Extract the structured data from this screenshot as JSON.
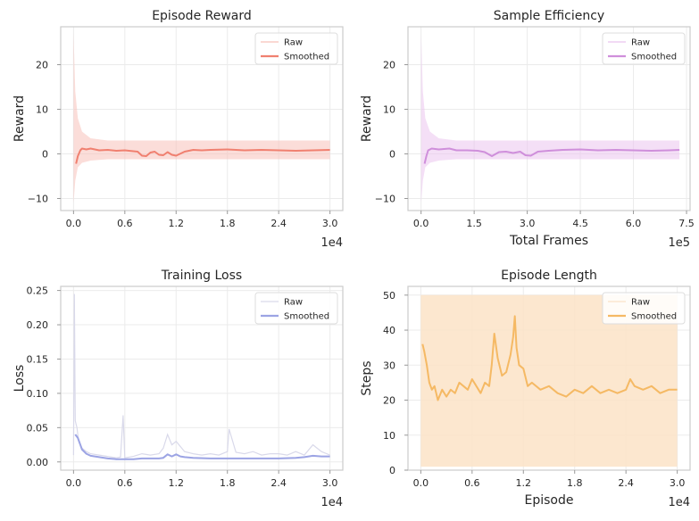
{
  "colors": {
    "background": "#ffffff",
    "spine": "#cccccc",
    "grid": "#ebebeb",
    "raw_reward": "#f7c1b9",
    "smoothed_reward": "#f08070",
    "raw_frames": "#ebc4ef",
    "smoothed_frames": "#cf8fdb",
    "raw_loss": "#d9d9ea",
    "smoothed_loss": "#9ca4e4",
    "band_length": "#fbe3c7",
    "smoothed_length": "#f5b964"
  },
  "chart_data": [
    {
      "id": "episode-reward",
      "type": "line",
      "title": "Episode Reward",
      "xlabel": "",
      "ylabel": "Reward",
      "x_multiplier": "1e4",
      "xlim": [
        -0.15,
        3.15
      ],
      "ylim": [
        -12.7,
        28.5
      ],
      "x_ticks": [
        0,
        0.6,
        1.2,
        1.8,
        2.4,
        3.0
      ],
      "x_tick_labels": [
        "0.0",
        "0.6",
        "1.2",
        "1.8",
        "2.4",
        "3.0"
      ],
      "y_ticks": [
        -10,
        0,
        10,
        20
      ],
      "y_tick_labels": [
        "−10",
        "0",
        "10",
        "20"
      ],
      "legend": {
        "position": "top-right",
        "entries": [
          "Raw",
          "Smoothed"
        ]
      },
      "raw_band": {
        "x": [
          0.0,
          0.02,
          0.05,
          0.1,
          0.2,
          0.4,
          0.8,
          1.2,
          1.6,
          2.0,
          2.4,
          2.8,
          3.0
        ],
        "low": [
          -11,
          -6,
          -3,
          -2,
          -1.5,
          -1.2,
          -1.2,
          -1.2,
          -1.2,
          -1.2,
          -1.2,
          -1.2,
          -1.2
        ],
        "high": [
          27,
          14,
          8,
          5,
          3.5,
          3,
          3,
          3,
          3,
          3,
          3,
          3,
          3
        ]
      },
      "series": [
        {
          "name": "Smoothed",
          "x": [
            0.03,
            0.05,
            0.08,
            0.1,
            0.15,
            0.2,
            0.3,
            0.4,
            0.5,
            0.6,
            0.7,
            0.75,
            0.8,
            0.85,
            0.9,
            0.95,
            1.0,
            1.05,
            1.1,
            1.15,
            1.2,
            1.3,
            1.4,
            1.5,
            1.6,
            1.8,
            2.0,
            2.2,
            2.4,
            2.6,
            2.8,
            3.0
          ],
          "y": [
            -2.2,
            -0.5,
            0.8,
            1.2,
            1.0,
            1.2,
            0.8,
            0.9,
            0.7,
            0.8,
            0.6,
            0.5,
            -0.4,
            -0.5,
            0.3,
            0.5,
            -0.2,
            -0.3,
            0.4,
            -0.2,
            -0.4,
            0.5,
            0.9,
            0.8,
            0.9,
            1.0,
            0.8,
            0.9,
            0.8,
            0.7,
            0.8,
            0.9
          ]
        }
      ]
    },
    {
      "id": "sample-efficiency",
      "type": "line",
      "title": "Sample Efficiency",
      "xlabel": "Total Frames",
      "ylabel": "Reward",
      "x_multiplier": "1e5",
      "xlim": [
        -0.37,
        7.6
      ],
      "ylim": [
        -12.7,
        28.5
      ],
      "x_ticks": [
        0,
        1.5,
        3.0,
        4.5,
        6.0,
        7.5
      ],
      "x_tick_labels": [
        "0.0",
        "1.5",
        "3.0",
        "4.5",
        "6.0",
        "7.5"
      ],
      "y_ticks": [
        -10,
        0,
        10,
        20
      ],
      "y_tick_labels": [
        "−10",
        "0",
        "10",
        "20"
      ],
      "legend": {
        "position": "top-right",
        "entries": [
          "Raw",
          "Smoothed"
        ]
      },
      "raw_band": {
        "x": [
          0.0,
          0.05,
          0.12,
          0.25,
          0.5,
          1.0,
          2.0,
          3.0,
          4.0,
          5.0,
          6.0,
          7.0,
          7.3
        ],
        "low": [
          -11,
          -6,
          -3,
          -2,
          -1.5,
          -1.2,
          -1.2,
          -1.2,
          -1.2,
          -1.2,
          -1.2,
          -1.2,
          -1.2
        ],
        "high": [
          27,
          14,
          8,
          5,
          3.5,
          3,
          3,
          3,
          3,
          3,
          3,
          3,
          3
        ]
      },
      "series": [
        {
          "name": "Smoothed",
          "x": [
            0.1,
            0.15,
            0.2,
            0.3,
            0.5,
            0.8,
            1.0,
            1.3,
            1.6,
            1.8,
            2.0,
            2.2,
            2.4,
            2.6,
            2.8,
            2.95,
            3.1,
            3.3,
            3.6,
            4.0,
            4.5,
            5.0,
            5.5,
            6.0,
            6.5,
            7.0,
            7.3
          ],
          "y": [
            -2.2,
            -0.5,
            0.8,
            1.2,
            1.0,
            1.2,
            0.8,
            0.8,
            0.7,
            0.4,
            -0.5,
            0.4,
            0.5,
            0.2,
            0.5,
            -0.3,
            -0.4,
            0.5,
            0.7,
            0.9,
            1.0,
            0.8,
            0.9,
            0.8,
            0.7,
            0.8,
            0.9
          ]
        }
      ]
    },
    {
      "id": "training-loss",
      "type": "line",
      "title": "Training Loss",
      "xlabel": "",
      "ylabel": "Loss",
      "x_multiplier": "1e4",
      "xlim": [
        -0.15,
        3.15
      ],
      "ylim": [
        -0.012,
        0.256
      ],
      "x_ticks": [
        0,
        0.6,
        1.2,
        1.8,
        2.4,
        3.0
      ],
      "x_tick_labels": [
        "0.0",
        "0.6",
        "1.2",
        "1.8",
        "2.4",
        "3.0"
      ],
      "y_ticks": [
        0.0,
        0.05,
        0.1,
        0.15,
        0.2,
        0.25
      ],
      "y_tick_labels": [
        "0.00",
        "0.05",
        "0.10",
        "0.15",
        "0.20",
        "0.25"
      ],
      "legend": {
        "position": "top-right",
        "entries": [
          "Raw",
          "Smoothed"
        ]
      },
      "raw_line": {
        "x": [
          0.0,
          0.01,
          0.02,
          0.04,
          0.06,
          0.1,
          0.15,
          0.2,
          0.3,
          0.4,
          0.5,
          0.55,
          0.58,
          0.6,
          0.7,
          0.8,
          0.9,
          1.0,
          1.05,
          1.1,
          1.15,
          1.2,
          1.3,
          1.4,
          1.5,
          1.6,
          1.7,
          1.8,
          1.82,
          1.9,
          2.0,
          2.1,
          2.2,
          2.3,
          2.4,
          2.5,
          2.6,
          2.7,
          2.8,
          2.9,
          3.0
        ],
        "y": [
          0.01,
          0.245,
          0.06,
          0.05,
          0.03,
          0.02,
          0.015,
          0.012,
          0.01,
          0.008,
          0.006,
          0.007,
          0.068,
          0.006,
          0.008,
          0.012,
          0.01,
          0.012,
          0.02,
          0.04,
          0.025,
          0.03,
          0.015,
          0.012,
          0.01,
          0.012,
          0.01,
          0.015,
          0.048,
          0.014,
          0.012,
          0.015,
          0.01,
          0.012,
          0.012,
          0.01,
          0.015,
          0.01,
          0.025,
          0.015,
          0.01
        ]
      },
      "series": [
        {
          "name": "Smoothed",
          "x": [
            0.02,
            0.05,
            0.08,
            0.1,
            0.15,
            0.2,
            0.3,
            0.4,
            0.5,
            0.6,
            0.7,
            0.8,
            0.9,
            1.0,
            1.05,
            1.1,
            1.15,
            1.2,
            1.25,
            1.3,
            1.4,
            1.6,
            1.8,
            2.0,
            2.2,
            2.4,
            2.6,
            2.7,
            2.8,
            2.9,
            3.0
          ],
          "y": [
            0.04,
            0.035,
            0.025,
            0.018,
            0.012,
            0.009,
            0.007,
            0.005,
            0.004,
            0.004,
            0.004,
            0.005,
            0.005,
            0.005,
            0.006,
            0.011,
            0.008,
            0.011,
            0.008,
            0.007,
            0.006,
            0.005,
            0.005,
            0.005,
            0.005,
            0.005,
            0.006,
            0.007,
            0.009,
            0.008,
            0.008
          ]
        }
      ]
    },
    {
      "id": "episode-length",
      "type": "line",
      "title": "Episode Length",
      "xlabel": "Episode",
      "ylabel": "Steps",
      "x_multiplier": "1e4",
      "xlim": [
        -0.15,
        3.15
      ],
      "ylim": [
        0,
        52.5
      ],
      "x_ticks": [
        0,
        0.6,
        1.2,
        1.8,
        2.4,
        3.0
      ],
      "x_tick_labels": [
        "0.0",
        "0.6",
        "1.2",
        "1.8",
        "2.4",
        "3.0"
      ],
      "y_ticks": [
        0,
        10,
        20,
        30,
        40,
        50
      ],
      "y_tick_labels": [
        "0",
        "10",
        "20",
        "30",
        "40",
        "50"
      ],
      "legend": {
        "position": "top-right",
        "entries": [
          "Raw",
          "Smoothed"
        ]
      },
      "raw_band": {
        "x": [
          0.0,
          3.0
        ],
        "low": [
          1,
          1
        ],
        "high": [
          50,
          50
        ]
      },
      "series": [
        {
          "name": "Smoothed",
          "x": [
            0.02,
            0.04,
            0.07,
            0.1,
            0.13,
            0.16,
            0.2,
            0.25,
            0.3,
            0.35,
            0.4,
            0.45,
            0.5,
            0.55,
            0.6,
            0.65,
            0.7,
            0.75,
            0.8,
            0.83,
            0.86,
            0.9,
            0.95,
            1.0,
            1.05,
            1.08,
            1.1,
            1.12,
            1.15,
            1.2,
            1.25,
            1.3,
            1.4,
            1.5,
            1.6,
            1.7,
            1.8,
            1.9,
            2.0,
            2.1,
            2.2,
            2.3,
            2.4,
            2.45,
            2.5,
            2.6,
            2.7,
            2.8,
            2.9,
            3.0
          ],
          "y": [
            36,
            34,
            30,
            25,
            23,
            24,
            20,
            23,
            21,
            23,
            22,
            25,
            24,
            23,
            26,
            24,
            22,
            25,
            24,
            30,
            39,
            32,
            27,
            28,
            33,
            38,
            44,
            35,
            30,
            29,
            24,
            25,
            23,
            24,
            22,
            21,
            23,
            22,
            24,
            22,
            23,
            22,
            23,
            26,
            24,
            23,
            24,
            22,
            23,
            23
          ]
        }
      ]
    }
  ]
}
